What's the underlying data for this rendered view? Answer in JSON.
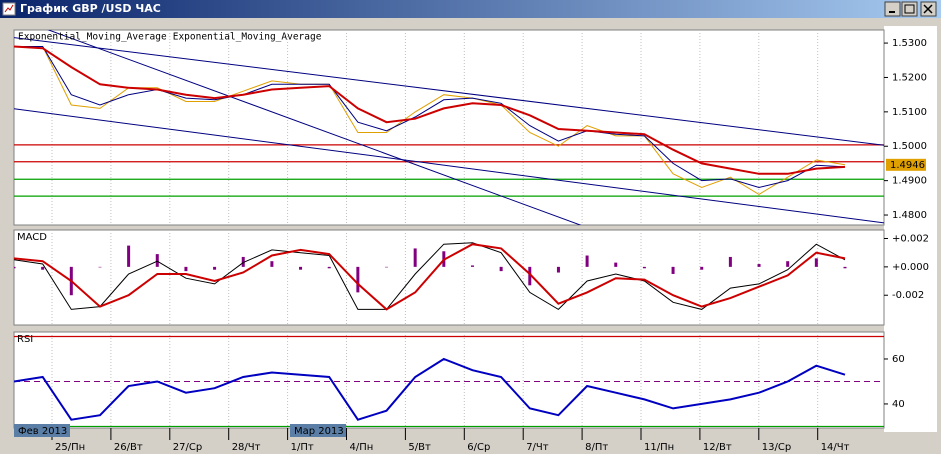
{
  "window_title": "График GBP /USD ЧАС",
  "x_axis": {
    "labels": [
      "25/Пн",
      "26/Вт",
      "27/Ср",
      "28/Чт",
      "1/Пт",
      "4/Пн",
      "5/Вт",
      "6/Ср",
      "7/Чт",
      "8/Пт",
      "11/Пн",
      "12/Вт",
      "13/Ср",
      "14/Чт"
    ],
    "months": [
      "Фев 2013",
      "Мар 2013"
    ]
  },
  "chart_data": [
    {
      "type": "line",
      "ylim": [
        1.4771,
        1.5338
      ],
      "yticks": [
        {
          "value": 1.53,
          "label": "1.5300"
        },
        {
          "value": 1.52,
          "label": "1.5200"
        },
        {
          "value": 1.51,
          "label": "1.5100"
        },
        {
          "value": 1.5,
          "label": "1.5000"
        },
        {
          "value": 1.49,
          "label": "1.4900"
        },
        {
          "value": 1.48,
          "label": "1.4800"
        }
      ],
      "series": [
        {
          "color": "#e0a000",
          "show_last": true,
          "values": [
            1.529,
            1.529,
            1.512,
            1.511,
            1.517,
            1.517,
            1.513,
            1.513,
            1.516,
            1.519,
            1.518,
            1.518,
            1.504,
            1.504,
            1.51,
            1.515,
            1.514,
            1.512,
            1.504,
            1.5,
            1.506,
            1.503,
            1.503,
            1.492,
            1.488,
            1.491,
            1.486,
            1.491,
            1.496,
            1.4946
          ]
        },
        {
          "name": "Exponential_Moving_Average",
          "color": "#000080",
          "values": [
            1.529,
            1.529,
            1.515,
            1.512,
            1.515,
            1.5165,
            1.514,
            1.5135,
            1.515,
            1.518,
            1.518,
            1.518,
            1.507,
            1.5045,
            1.5085,
            1.5135,
            1.514,
            1.5125,
            1.506,
            1.5015,
            1.5045,
            1.5035,
            1.503,
            1.495,
            1.49,
            1.4905,
            1.488,
            1.49,
            1.4945,
            1.494
          ]
        },
        {
          "name": "Exponential_Moving_Average",
          "color": "#cc0000",
          "width": 2,
          "values": [
            1.529,
            1.5285,
            1.523,
            1.518,
            1.517,
            1.5165,
            1.515,
            1.514,
            1.515,
            1.5165,
            1.517,
            1.5175,
            1.511,
            1.507,
            1.508,
            1.511,
            1.5125,
            1.512,
            1.509,
            1.505,
            1.5045,
            1.504,
            1.5035,
            1.499,
            1.495,
            1.4935,
            1.492,
            1.492,
            1.4935,
            1.494
          ]
        }
      ],
      "hlines": [
        {
          "value": 1.5004,
          "color": "#cc0000"
        },
        {
          "value": 1.4955,
          "color": "#cc0000"
        },
        {
          "value": 1.4904,
          "color": "#00a000"
        },
        {
          "value": 1.4855,
          "color": "#00a000"
        }
      ],
      "trendlines": [
        {
          "start": 1.5316,
          "end": 1.5003
        },
        {
          "start": 1.5109,
          "end": 1.4777
        },
        {
          "start": 1.5375,
          "end": 1.4447
        }
      ]
    },
    {
      "type": "line",
      "title": "MACD",
      "ylim": [
        -0.0041,
        0.0026
      ],
      "yticks": [
        {
          "value": 0.002,
          "label": "+0.002"
        },
        {
          "value": 0,
          "label": "+0.000"
        },
        {
          "value": -0.002,
          "label": "-0.002"
        }
      ],
      "series": [
        {
          "color": "#800080",
          "kind": "bar",
          "values": [
            -0.0001,
            -0.0002,
            -0.002,
            0,
            0.0015,
            0.0009,
            -0.0003,
            -0.0002,
            0.0007,
            0.0004,
            -0.0002,
            -0.0001,
            -0.0018,
            0,
            0.0013,
            0.0011,
            0.0001,
            -0.0003,
            -0.0013,
            -0.0004,
            0.0008,
            0.0003,
            -0.0001,
            -0.0005,
            -0.0002,
            0.0007,
            0.0002,
            0.0004,
            0.0006,
            -0.0001
          ]
        },
        {
          "color": "#000000",
          "values": [
            0.0005,
            0.0002,
            -0.003,
            -0.0028,
            -0.0005,
            0.0004,
            -0.0008,
            -0.0012,
            0.0003,
            0.0012,
            0.001,
            0.0008,
            -0.003,
            -0.003,
            -0.0005,
            0.0016,
            0.0017,
            0.001,
            -0.0018,
            -0.003,
            -0.001,
            -0.0005,
            -0.001,
            -0.0025,
            -0.003,
            -0.0015,
            -0.0012,
            -0.0002,
            0.0016,
            0.0005
          ]
        },
        {
          "color": "#cc0000",
          "width": 2,
          "values": [
            0.0006,
            0.0004,
            -0.001,
            -0.0028,
            -0.002,
            -0.0005,
            -0.0005,
            -0.001,
            -0.0004,
            0.0008,
            0.0012,
            0.0009,
            -0.0012,
            -0.003,
            -0.0018,
            0.0005,
            0.0016,
            0.0013,
            -0.0005,
            -0.0026,
            -0.0018,
            -0.0008,
            -0.0009,
            -0.002,
            -0.0028,
            -0.0022,
            -0.0014,
            -0.0006,
            0.001,
            0.0006
          ]
        }
      ]
    },
    {
      "type": "line",
      "title": "RSI",
      "ylim": [
        29.3,
        72
      ],
      "yticks": [
        60,
        40
      ],
      "series": [
        {
          "color": "#0000c0",
          "width": 2,
          "values": [
            50,
            52,
            33,
            35,
            48,
            50,
            45,
            47,
            52,
            54,
            53,
            52,
            33,
            37,
            52,
            60,
            55,
            52,
            38,
            35,
            48,
            45,
            42,
            38,
            40,
            42,
            45,
            50,
            57,
            53
          ]
        }
      ],
      "hlines": [
        {
          "value": 70,
          "color": "#cc0000"
        },
        {
          "value": 50,
          "color": "#800080",
          "dash": true
        },
        {
          "value": 30,
          "color": "#00a000"
        }
      ]
    }
  ]
}
